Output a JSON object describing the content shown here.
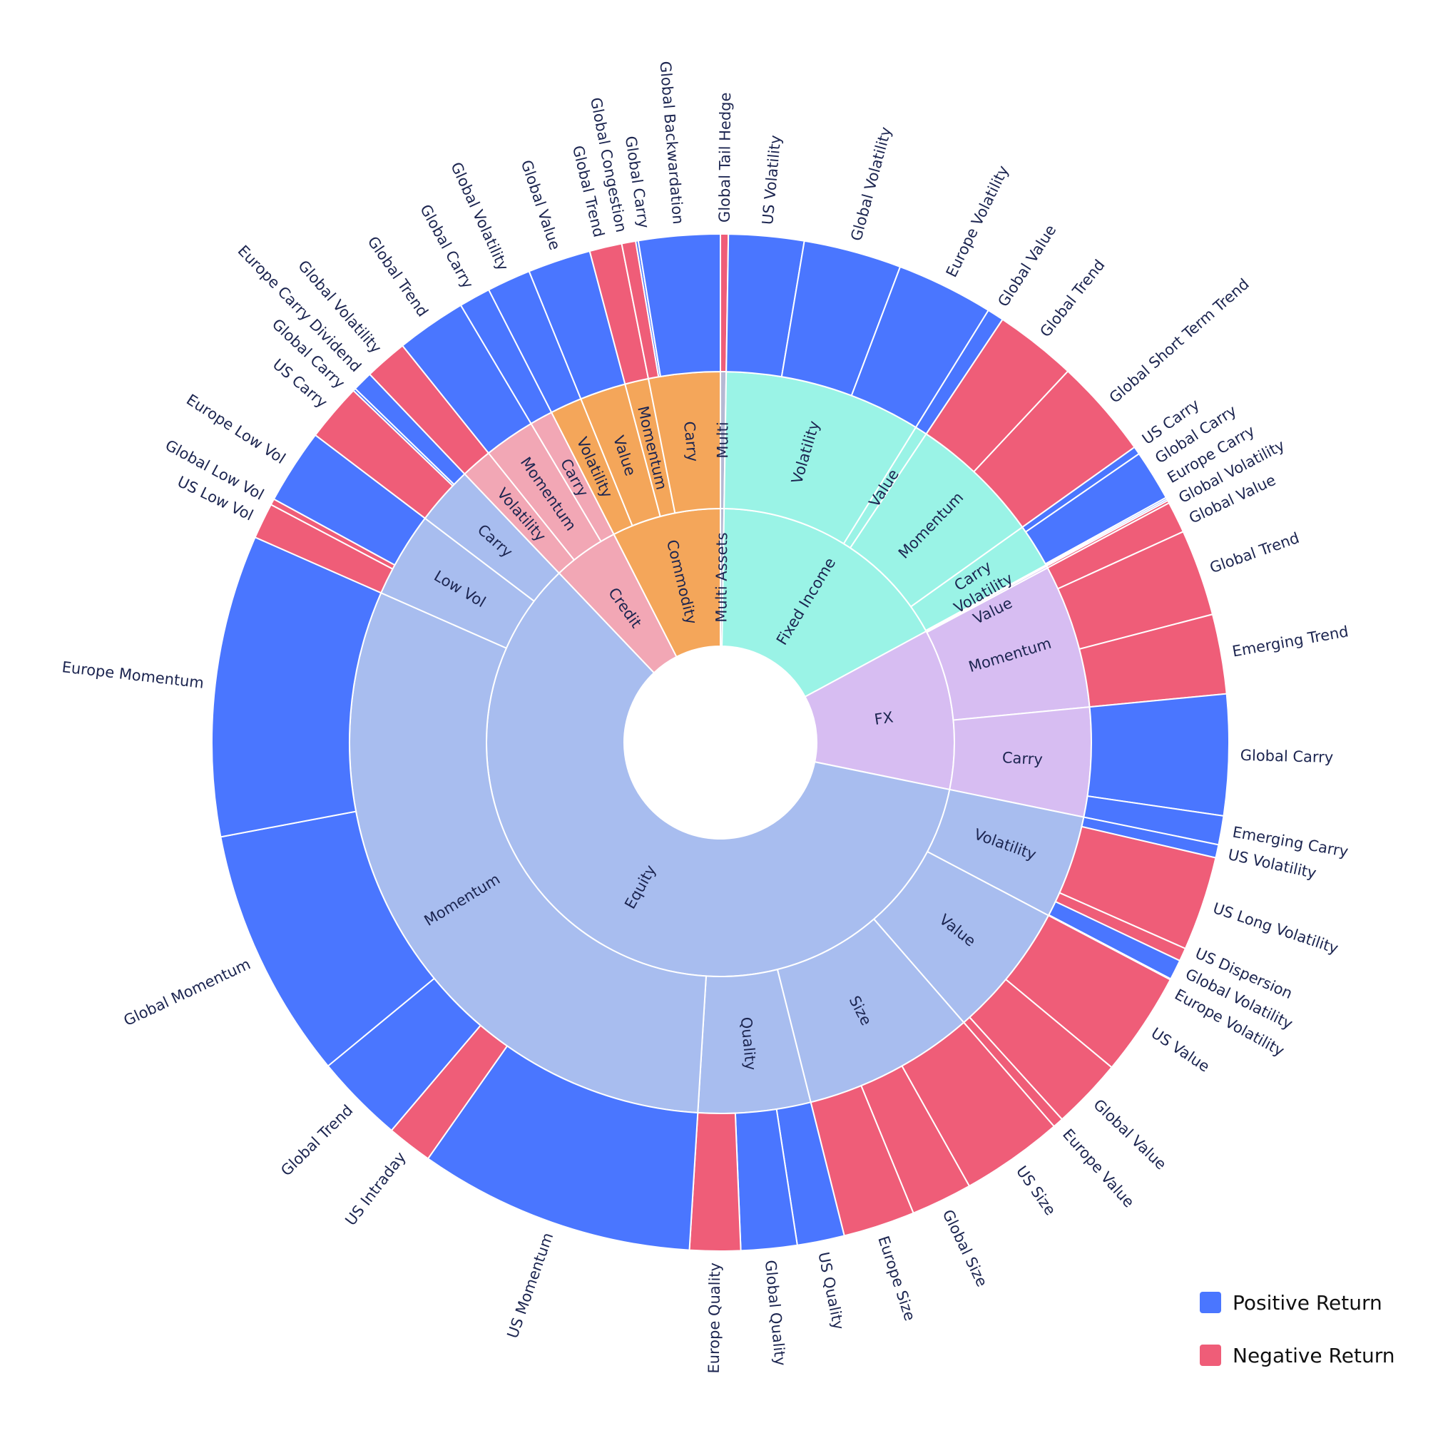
{
  "chart_data": {
    "type": "sunburst",
    "legend_placement": "bottom-right",
    "legend": [
      {
        "key": "positive",
        "label": "Positive Return"
      },
      {
        "key": "negative",
        "label": "Negative Return"
      }
    ],
    "colors": {
      "positive": "#4A76FF",
      "negative": "#EF5D78",
      "text": "#1C2550"
    },
    "sectors": [
      {
        "label": "Multi Assets",
        "color": "#B6B9D4",
        "children": [
          {
            "label": "Multi",
            "children": [
              {
                "label": "Global Tail Hedge",
                "value": 0.9,
                "sign": "negative"
              }
            ]
          }
        ]
      },
      {
        "label": "Fixed Income",
        "color": "#9AF3E6",
        "children": [
          {
            "label": "Volatility",
            "children": [
              {
                "label": "US Volatility",
                "value": 8.6,
                "sign": "positive"
              },
              {
                "label": "Global Volatility",
                "value": 11.2,
                "sign": "positive"
              },
              {
                "label": "Europe Volatility",
                "value": 11.1,
                "sign": "positive"
              }
            ]
          },
          {
            "label": "Value",
            "children": [
              {
                "label": "Global Value",
                "value": 1.9,
                "sign": "positive"
              }
            ]
          },
          {
            "label": "Momentum",
            "children": [
              {
                "label": "Global Trend",
                "value": 9.4,
                "sign": "negative"
              },
              {
                "label": "Global Short Term Trend",
                "value": 11.4,
                "sign": "negative"
              }
            ]
          },
          {
            "label": "Carry",
            "children": [
              {
                "label": "US Carry",
                "value": 0.9,
                "sign": "positive"
              },
              {
                "label": "Global Carry",
                "value": 5.8,
                "sign": "positive"
              },
              {
                "label": "Europe Carry",
                "value": 0.2,
                "sign": "positive"
              }
            ]
          },
          {
            "label": "Volatility",
            "children": [
              {
                "label": "Global Volatility",
                "value": 0.2,
                "sign": "positive"
              }
            ]
          }
        ]
      },
      {
        "label": "FX",
        "color": "#D7BDF2",
        "children": [
          {
            "label": "Value",
            "children": [
              {
                "label": "Global Value",
                "value": 0.3,
                "sign": "negative"
              }
            ]
          },
          {
            "label": "Momentum",
            "children": [
              {
                "label": "",
                "value": 3.6,
                "sign": "negative"
              },
              {
                "label": "Global Trend",
                "value": 9.9,
                "sign": "negative"
              },
              {
                "label": "Emerging Trend",
                "value": 9.1,
                "sign": "negative"
              }
            ]
          },
          {
            "label": "Carry",
            "children": [
              {
                "label": "Global Carry",
                "value": 13.8,
                "sign": "positive"
              },
              {
                "label": "Emerging Carry",
                "value": 3.3,
                "sign": "positive"
              }
            ]
          }
        ]
      },
      {
        "label": "Equity",
        "color": "#A8BDEF",
        "children": [
          {
            "label": "Volatility",
            "children": [
              {
                "label": "US Volatility",
                "value": 1.5,
                "sign": "positive"
              },
              {
                "label": "US Long Volatility",
                "value": 10.8,
                "sign": "negative"
              },
              {
                "label": "US Dispersion",
                "value": 1.5,
                "sign": "negative"
              },
              {
                "label": "Global Volatility",
                "value": 2.3,
                "sign": "positive"
              },
              {
                "label": "Europe Volatility",
                "value": 0.1,
                "sign": "positive"
              }
            ]
          },
          {
            "label": "Value",
            "children": [
              {
                "label": "US Value",
                "value": 11.9,
                "sign": "negative"
              },
              {
                "label": "Global Value",
                "value": 8.1,
                "sign": "negative"
              },
              {
                "label": "Europe Value",
                "value": 1.2,
                "sign": "negative"
              }
            ]
          },
          {
            "label": "Size",
            "children": [
              {
                "label": "US Size",
                "value": 11.7,
                "sign": "negative"
              },
              {
                "label": "Global Size",
                "value": 7.0,
                "sign": "negative"
              },
              {
                "label": "Europe Size",
                "value": 8.2,
                "sign": "negative"
              }
            ]
          },
          {
            "label": "Quality",
            "children": [
              {
                "label": "US Quality",
                "value": 5.4,
                "sign": "positive"
              },
              {
                "label": "Global Quality",
                "value": 6.4,
                "sign": "positive"
              },
              {
                "label": "Europe Quality",
                "value": 5.8,
                "sign": "negative"
              }
            ]
          },
          {
            "label": "Momentum",
            "children": [
              {
                "label": "US Momentum",
                "value": 31.6,
                "sign": "positive"
              },
              {
                "label": "US Intraday",
                "value": 5.2,
                "sign": "negative"
              },
              {
                "label": "Global Trend",
                "value": 10.2,
                "sign": "positive"
              },
              {
                "label": "Global Momentum",
                "value": 28.8,
                "sign": "positive"
              },
              {
                "label": "Europe Momentum",
                "value": 34.5,
                "sign": "positive"
              }
            ]
          },
          {
            "label": "Low Vol",
            "children": [
              {
                "label": "US Low Vol",
                "value": 4.1,
                "sign": "negative"
              },
              {
                "label": "Global Low Vol",
                "value": 0.7,
                "sign": "negative"
              },
              {
                "label": "Europe Low Vol",
                "value": 8.6,
                "sign": "positive"
              }
            ]
          },
          {
            "label": "Carry",
            "children": [
              {
                "label": "US Carry",
                "value": 6.6,
                "sign": "negative"
              },
              {
                "label": "Global Carry",
                "value": 0.3,
                "sign": "positive"
              },
              {
                "label": "Europe Carry Dividend",
                "value": 2.3,
                "sign": "positive"
              }
            ]
          }
        ]
      },
      {
        "label": "Credit",
        "color": "#F2A7B5",
        "children": [
          {
            "label": "Volatility",
            "children": [
              {
                "label": "Global Volatility",
                "value": 4.9,
                "sign": "negative"
              }
            ]
          },
          {
            "label": "Momentum",
            "children": [
              {
                "label": "Global Trend",
                "value": 8.0,
                "sign": "positive"
              }
            ]
          },
          {
            "label": "Carry",
            "children": [
              {
                "label": "Global Carry",
                "value": 3.6,
                "sign": "positive"
              }
            ]
          }
        ]
      },
      {
        "label": "Commodity",
        "color": "#F4A65A",
        "children": [
          {
            "label": "Volatility",
            "children": [
              {
                "label": "Global Volatility",
                "value": 5.0,
                "sign": "positive"
              }
            ]
          },
          {
            "label": "Value",
            "children": [
              {
                "label": "Global Value",
                "value": 7.2,
                "sign": "positive"
              }
            ]
          },
          {
            "label": "Momentum",
            "children": [
              {
                "label": "Global Trend",
                "value": 3.7,
                "sign": "negative"
              }
            ]
          },
          {
            "label": "Carry",
            "children": [
              {
                "label": "Global Congestion",
                "value": 1.6,
                "sign": "negative"
              },
              {
                "label": "Global Carry",
                "value": 0.3,
                "sign": "positive"
              },
              {
                "label": "Global Backwardation",
                "value": 9.3,
                "sign": "positive"
              }
            ]
          }
        ]
      }
    ]
  }
}
